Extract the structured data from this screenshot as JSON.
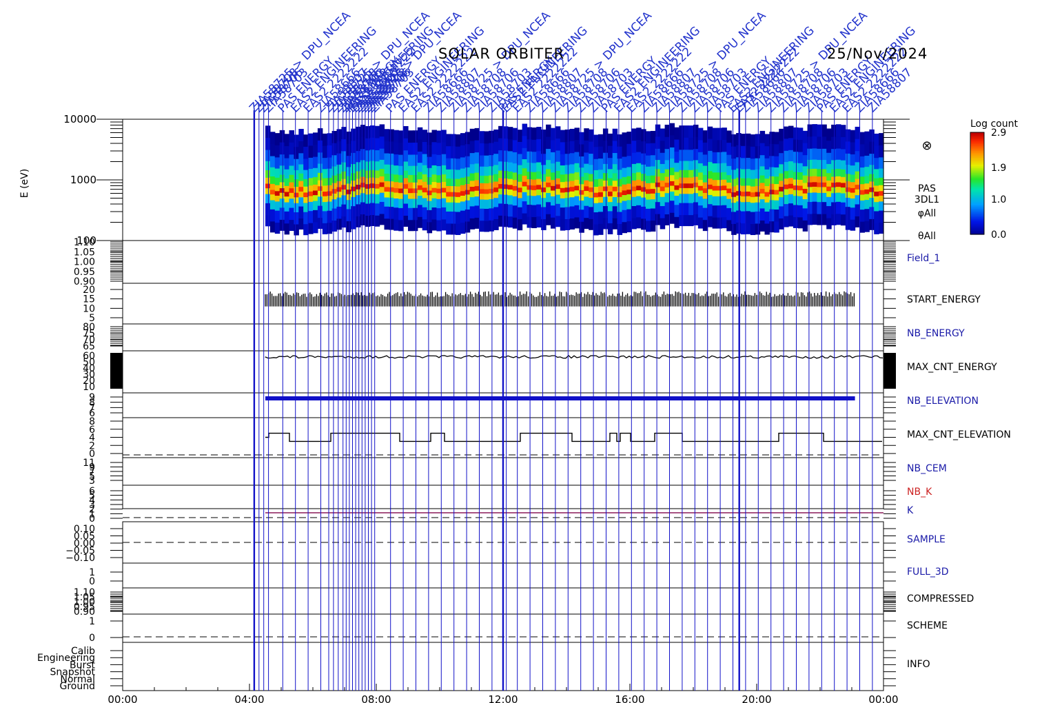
{
  "header": {
    "mission": "SOLAR ORBITER",
    "date": "25/Nov/2024"
  },
  "x_axis": {
    "ticks": [
      "00:00",
      "04:00",
      "08:00",
      "12:00",
      "16:00",
      "20:00",
      "00:00"
    ]
  },
  "colors": {
    "event_line": "#1010c8",
    "event_label": "#2233cc",
    "panel_label_blue": "#1a1aa8",
    "panel_label_red": "#cc2222",
    "k_line": "#8a1a5a",
    "trace": "#000000"
  },
  "spectrogram": {
    "ylabel": "E (eV)",
    "yticks": [
      "10000",
      "1000",
      "100"
    ],
    "side_labels": [
      "PAS",
      "3DL1",
      "φAll",
      "θAll"
    ],
    "symbol": "⊗",
    "colorbar": {
      "title": "Log count",
      "ticks": [
        "2.9",
        "1.9",
        "1.0",
        "0.0"
      ]
    }
  },
  "panels": [
    {
      "name": "Field_1",
      "label_color": "blue",
      "ticks": [
        "1.10",
        "1.05",
        "1.00",
        "0.95",
        "0.90"
      ]
    },
    {
      "name": "START_ENERGY",
      "label_color": "black",
      "ticks": [
        "20",
        "15",
        "10",
        "5"
      ]
    },
    {
      "name": "NB_ENERGY",
      "label_color": "blue",
      "ticks": [
        "80",
        "75",
        "70",
        "65"
      ]
    },
    {
      "name": "MAX_CNT_ENERGY",
      "label_color": "black",
      "ticks": [
        "60",
        "50",
        "40",
        "30",
        "20",
        "10"
      ]
    },
    {
      "name": "NB_ELEVATION",
      "label_color": "blue",
      "ticks": [
        "9",
        "8",
        "7",
        "6"
      ]
    },
    {
      "name": "MAX_CNT_ELEVATION",
      "label_color": "black",
      "ticks": [
        "8",
        "6",
        "4",
        "2",
        "0"
      ]
    },
    {
      "name": "NB_CEM",
      "label_color": "blue",
      "ticks": [
        "11",
        "9",
        "7",
        "5",
        "3"
      ]
    },
    {
      "name": "NB_K",
      "label_color": "red",
      "ticks": [
        "6",
        "5",
        "4",
        "3",
        "2",
        "1",
        "0"
      ]
    },
    {
      "name": "K",
      "label_color": "blue",
      "ticks": []
    },
    {
      "name": "SAMPLE",
      "label_color": "blue",
      "ticks": [
        "0.10",
        "0.05",
        "0.00",
        "−0.05",
        "−0.10"
      ]
    },
    {
      "name": "FULL_3D",
      "label_color": "blue",
      "ticks": [
        "1",
        "0"
      ]
    },
    {
      "name": "COMPRESSED",
      "label_color": "black",
      "ticks": [
        "1.10",
        "1.05",
        "1.00",
        "0.95",
        "0.90"
      ]
    },
    {
      "name": "SCHEME",
      "label_color": "black",
      "ticks": [
        "1",
        "0"
      ]
    },
    {
      "name": "INFO",
      "label_color": "black",
      "ticks": [
        "Calib",
        "Engineering",
        "Burst",
        "Snapshot",
        "Normal",
        "Ground"
      ]
    }
  ],
  "events": {
    "label_samples": [
      "ZIA58725 > DPU_NCEA",
      "ZIA58708",
      "ZIA58706",
      "ZIA58703",
      "PAS ENERGY",
      "EAS2 ENGINEERING",
      "EAS2 2222222",
      "ZIA58666",
      "ZIA58807"
    ]
  },
  "chart_data": {
    "type": "heatmap",
    "title": "SOLAR ORBITER 25/Nov/2024",
    "xlabel": "",
    "ylabel": "E (eV)",
    "xlim": [
      "00:00",
      "24:00"
    ],
    "ylim": [
      100,
      10000
    ],
    "y_scale": "log",
    "colorbar": {
      "label": "Log count",
      "range": [
        0.0,
        2.9
      ]
    },
    "data_start_hour": 4.5,
    "data_end_hour": 24.0,
    "spectrogram_profile": [
      {
        "energy_ev": 180,
        "log_count": 0.1
      },
      {
        "energy_ev": 300,
        "log_count": 0.35
      },
      {
        "energy_ev": 450,
        "log_count": 1.0
      },
      {
        "energy_ev": 600,
        "log_count": 2.0
      },
      {
        "energy_ev": 700,
        "log_count": 2.7
      },
      {
        "energy_ev": 850,
        "log_count": 2.2
      },
      {
        "energy_ev": 1100,
        "log_count": 1.6
      },
      {
        "energy_ev": 1500,
        "log_count": 1.1
      },
      {
        "energy_ev": 2200,
        "log_count": 0.6
      },
      {
        "energy_ev": 3500,
        "log_count": 0.2
      },
      {
        "energy_ev": 5500,
        "log_count": 0.05
      }
    ],
    "series": [
      {
        "name": "START_ENERGY",
        "typical_range": [
          11,
          19
        ]
      },
      {
        "name": "MAX_CNT_ENERGY",
        "level": 58
      },
      {
        "name": "NB_ELEVATION",
        "level": 9
      },
      {
        "name": "MAX_CNT_ELEVATION",
        "level": 4
      },
      {
        "name": "K",
        "level": 0
      }
    ],
    "event_times_hours": [
      4.15,
      4.3,
      4.45,
      4.6,
      5.05,
      5.45,
      5.85,
      6.25,
      6.5,
      6.65,
      6.8,
      6.95,
      7.05,
      7.15,
      7.25,
      7.35,
      7.45,
      7.55,
      7.65,
      7.75,
      7.85,
      7.95,
      8.45,
      8.85,
      9.25,
      9.65,
      10.05,
      10.45,
      10.85,
      11.25,
      11.65,
      12.0,
      12.1,
      12.45,
      12.85,
      13.25,
      13.65,
      14.05,
      14.45,
      14.85,
      15.25,
      15.65,
      16.05,
      16.45,
      16.85,
      17.25,
      17.65,
      18.05,
      18.45,
      18.85,
      19.25,
      19.45,
      19.65,
      20.05,
      20.45,
      20.85,
      21.25,
      21.65,
      22.05,
      22.45,
      22.85,
      23.25,
      23.65
    ]
  }
}
